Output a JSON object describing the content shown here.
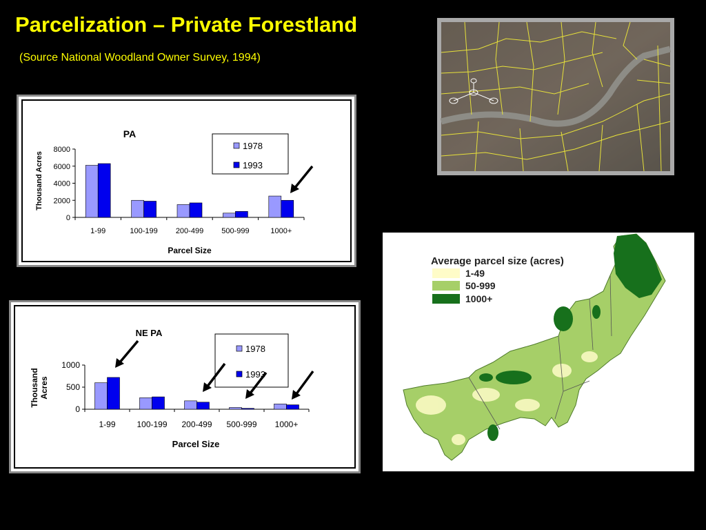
{
  "slide": {
    "title": "Parcelization – Private Forestland",
    "subtitle": "(Source National Woodland Owner Survey, 1994)"
  },
  "map": {
    "legend_title": "Average parcel size (acres)",
    "legend": [
      {
        "label": "1-49",
        "color": "#fffcc8"
      },
      {
        "label": "50-999",
        "color": "#a6cf68"
      },
      {
        "label": "1000+",
        "color": "#17701c"
      }
    ]
  },
  "colors": {
    "s1978": "#9999ff",
    "s1993": "#0000ee",
    "title": "#ffff00"
  },
  "chart_data": [
    {
      "type": "bar",
      "title": "PA",
      "xlabel": "Parcel Size",
      "ylabel": "Thousand Acres",
      "categories": [
        "1-99",
        "100-199",
        "200-499",
        "500-999",
        "1000+"
      ],
      "series": [
        {
          "name": "1978",
          "values": [
            6100,
            2000,
            1500,
            500,
            2500
          ]
        },
        {
          "name": "1993",
          "values": [
            6300,
            1900,
            1700,
            700,
            2000
          ]
        }
      ],
      "ylim": [
        0,
        8000
      ],
      "yticks": [
        "0",
        "2000",
        "4000",
        "6000",
        "8000"
      ],
      "legend": "top-right",
      "grid": false
    },
    {
      "type": "bar",
      "title": "NE PA",
      "xlabel": "Parcel Size",
      "ylabel_lines": [
        "Thousand",
        "Acres"
      ],
      "categories": [
        "1-99",
        "100-199",
        "200-499",
        "500-999",
        "1000+"
      ],
      "series": [
        {
          "name": "1978",
          "values": [
            600,
            260,
            190,
            40,
            120
          ]
        },
        {
          "name": "1993",
          "values": [
            720,
            280,
            160,
            20,
            100
          ]
        }
      ],
      "ylim": [
        0,
        1000
      ],
      "yticks": [
        "0",
        "500",
        "1000"
      ],
      "legend": "top-right",
      "grid": false
    }
  ]
}
